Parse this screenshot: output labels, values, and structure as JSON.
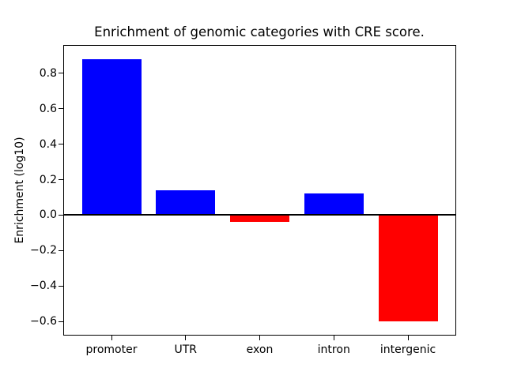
{
  "chart_data": {
    "type": "bar",
    "title": "Enrichment of genomic categories with CRE score.",
    "xlabel": "",
    "ylabel": "Enrichment (log10)",
    "categories": [
      "promoter",
      "UTR",
      "exon",
      "intron",
      "intergenic"
    ],
    "values": [
      0.88,
      0.14,
      -0.04,
      0.12,
      -0.6
    ],
    "positive_color": "#0000ff",
    "negative_color": "#ff0000",
    "zero_line_color": "#000000",
    "yticks": [
      0.8,
      0.6,
      0.4,
      0.2,
      0.0,
      -0.2,
      -0.4,
      -0.6
    ],
    "ytick_labels": [
      "0.8",
      "0.6",
      "0.4",
      "0.2",
      "0.0",
      "−0.2",
      "−0.4",
      "−0.6"
    ],
    "ylim": [
      -0.674,
      0.954
    ],
    "xlim": [
      -0.64,
      4.64
    ],
    "bar_width": 0.8,
    "grid": false,
    "legend_position": "none",
    "background_color": "#ffffff"
  }
}
